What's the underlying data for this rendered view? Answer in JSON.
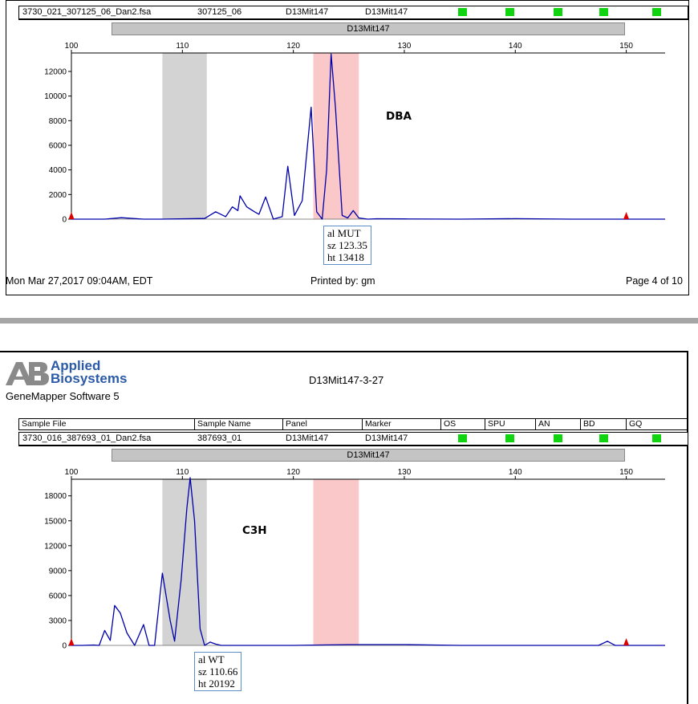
{
  "colors": {
    "trace": "#0000aa",
    "grey_bin": "#d3d3d3",
    "pink_bin": "#fac8c8",
    "size_marker": "#dd0000",
    "allele_square": "#11d411",
    "callout_border": "#5b8fc9"
  },
  "page1": {
    "row": {
      "sample_file": "3730_021_307125_06_Dan2.fsa",
      "sample_name": "307125_06",
      "panel": "D13Mit147",
      "marker": "D13Mit147"
    },
    "marker_bar": "D13Mit147",
    "strain_label": "DBA",
    "callout": {
      "line1": "al MUT",
      "line2": "sz 123.35",
      "line3": "ht 13418"
    },
    "footer": {
      "date": "Mon Mar 27,2017 09:04AM, EDT",
      "printed_by": "Printed by: gm",
      "page": "Page 4 of 10"
    }
  },
  "page2": {
    "logo": {
      "line1": "Applied",
      "line2": "Biosystems",
      "software": "GeneMapper Software 5"
    },
    "title": "D13Mit147-3-27",
    "headers": {
      "sample_file": "Sample File",
      "sample_name": "Sample Name",
      "panel": "Panel",
      "marker": "Marker",
      "os": "OS",
      "spu": "SPU",
      "an": "AN",
      "bd": "BD",
      "gq": "GQ"
    },
    "row": {
      "sample_file": "3730_016_387693_01_Dan2.fsa",
      "sample_name": "387693_01",
      "panel": "D13Mit147",
      "marker": "D13Mit147"
    },
    "marker_bar": "D13Mit147",
    "strain_label": "C3H",
    "callout": {
      "line1": "al WT",
      "line2": "sz 110.66",
      "line3": "ht 20192"
    }
  },
  "chart_data": [
    {
      "type": "line",
      "xlim": [
        100,
        153.5
      ],
      "ylim": [
        0,
        13500
      ],
      "x_ticks": [
        100,
        110,
        120,
        130,
        140,
        150
      ],
      "y_ticks": [
        0,
        2000,
        4000,
        6000,
        8000,
        10000,
        12000
      ],
      "bins": [
        {
          "range": [
            108.2,
            112.2
          ],
          "color": "grey"
        },
        {
          "range": [
            121.8,
            125.9
          ],
          "color": "pink"
        }
      ],
      "size_markers": [
        100,
        150
      ],
      "series": [
        {
          "x": [
            100,
            103,
            104.5,
            106.5,
            108,
            112,
            113,
            113.9,
            114.5,
            115,
            115.2,
            115.8,
            116.5,
            116.9,
            117.5,
            118.2,
            119,
            119.5,
            120.1,
            120.8,
            121.6,
            122.1,
            122.6,
            123.0,
            123.4,
            123.8,
            124.4,
            124.9,
            125.4,
            125.9,
            126.7,
            127.5,
            130,
            135,
            140,
            145,
            150,
            153.5
          ],
          "y": [
            0,
            0,
            120,
            0,
            0,
            50,
            600,
            200,
            1000,
            700,
            1900,
            1000,
            600,
            400,
            1800,
            0,
            200,
            4300,
            300,
            1500,
            9100,
            600,
            0,
            4000,
            13418,
            9000,
            300,
            100,
            700,
            100,
            0,
            30,
            20,
            0,
            40,
            0,
            0,
            0
          ]
        }
      ]
    },
    {
      "type": "line",
      "xlim": [
        100,
        153.5
      ],
      "ylim": [
        0,
        20000
      ],
      "x_ticks": [
        100,
        110,
        120,
        130,
        140,
        150
      ],
      "y_ticks": [
        0,
        3000,
        6000,
        9000,
        12000,
        15000,
        18000
      ],
      "bins": [
        {
          "range": [
            108.2,
            112.2
          ],
          "color": "grey"
        },
        {
          "range": [
            121.8,
            125.9
          ],
          "color": "pink"
        }
      ],
      "size_markers": [
        100,
        150
      ],
      "series": [
        {
          "x": [
            100,
            101,
            102,
            102.5,
            103.0,
            103.5,
            103.9,
            104.4,
            105.0,
            105.7,
            106.5,
            107.0,
            107.5,
            108.2,
            108.9,
            109.3,
            109.9,
            110.4,
            110.7,
            111.1,
            111.6,
            112.0,
            112.5,
            113.0,
            113.5,
            115,
            120,
            125,
            130,
            135,
            140,
            145,
            147.5,
            148.3,
            149,
            150,
            153.5
          ],
          "y": [
            0,
            0,
            50,
            0,
            1800,
            600,
            4800,
            3900,
            1500,
            0,
            2500,
            0,
            0,
            8700,
            3000,
            500,
            8000,
            16500,
            20192,
            15000,
            2000,
            0,
            400,
            150,
            0,
            0,
            0,
            100,
            100,
            0,
            0,
            0,
            0,
            500,
            0,
            0,
            0
          ]
        }
      ]
    }
  ]
}
